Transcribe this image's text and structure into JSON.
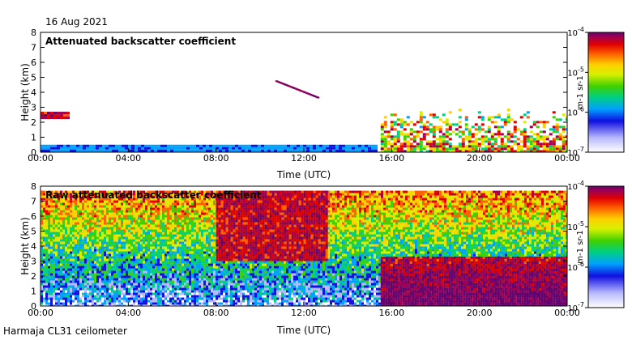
{
  "header": {
    "date": "16 Aug 2021"
  },
  "footer": {
    "instrument": "Harmaja CL31 ceilometer"
  },
  "chart_data": [
    {
      "type": "heatmap",
      "title": "Attenuated backscatter coefficient",
      "xlabel": "Time (UTC)",
      "ylabel": "Height (km)",
      "x_ticks": [
        "00:00",
        "04:00",
        "08:00",
        "12:00",
        "16:00",
        "20:00",
        "00:00"
      ],
      "y_ticks": [
        "0",
        "1",
        "2",
        "3",
        "4",
        "5",
        "6",
        "7",
        "8"
      ],
      "xlim_hours": [
        0,
        24
      ],
      "ylim_km": [
        0,
        8
      ],
      "colorbar": {
        "label": "m-1 sr-1",
        "ticks": [
          "10-7",
          "10-6",
          "10-5",
          "10-4"
        ],
        "scale": "log",
        "range": [
          1e-07,
          0.0001
        ]
      },
      "features": [
        {
          "description": "surface layer",
          "t_start": 0,
          "t_end": 15.3,
          "height_km": [
            0,
            0.5
          ],
          "level": "low"
        },
        {
          "description": "cloud layer",
          "t_start": 0,
          "t_end": 1.2,
          "height_km": [
            2.3,
            2.7
          ],
          "level": "high"
        },
        {
          "description": "descending thin layer",
          "t_start": 10.7,
          "t_end": 12.6,
          "height_km": [
            3.7,
            4.8
          ],
          "level": "very high"
        },
        {
          "description": "boundary layer",
          "t_start": 15.5,
          "t_end": 24,
          "height_km": [
            0,
            2.9
          ],
          "level": "mixed"
        }
      ]
    },
    {
      "type": "heatmap",
      "title": "Raw attenuated backscatter coefficient",
      "xlabel": "Time (UTC)",
      "ylabel": "Height (km)",
      "x_ticks": [
        "00:00",
        "04:00",
        "08:00",
        "12:00",
        "16:00",
        "20:00",
        "00:00"
      ],
      "y_ticks": [
        "0",
        "1",
        "2",
        "3",
        "4",
        "5",
        "6",
        "7",
        "8"
      ],
      "xlim_hours": [
        0,
        24
      ],
      "ylim_km": [
        0,
        8
      ],
      "colorbar": {
        "label": "m-1 sr-1",
        "ticks": [
          "10-7",
          "10-6",
          "10-5",
          "10-4"
        ],
        "scale": "log",
        "range": [
          1e-07,
          0.0001
        ]
      },
      "features": [
        {
          "description": "noise field increasing with height",
          "t_start": 0,
          "t_end": 24,
          "height_km": [
            0,
            7.7
          ],
          "level": "mixed"
        },
        {
          "description": "high noise region",
          "t_start": 8,
          "t_end": 13,
          "height_km": [
            3,
            7.7
          ],
          "level": "high"
        },
        {
          "description": "boundary layer",
          "t_start": 15.5,
          "t_end": 24,
          "height_km": [
            0,
            3.3
          ],
          "level": "high"
        }
      ]
    }
  ]
}
